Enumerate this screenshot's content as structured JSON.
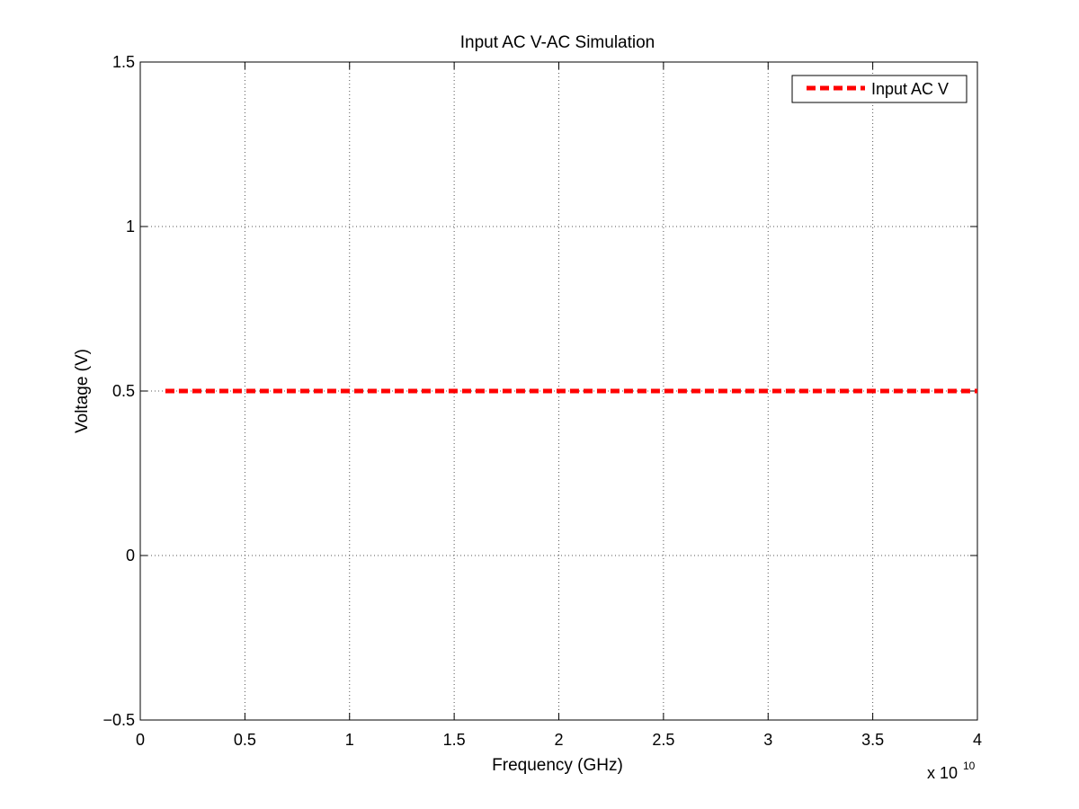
{
  "chart_data": {
    "type": "line",
    "title": "Input AC V-AC Simulation",
    "xlabel": "Frequency (GHz)",
    "ylabel": "Voltage (V)",
    "x_exponent_base": "x 10",
    "x_exponent_power": "10",
    "xlim": [
      0,
      40000000000.0
    ],
    "ylim": [
      -0.5,
      1.5
    ],
    "x_ticks": [
      0,
      5000000000.0,
      10000000000.0,
      15000000000.0,
      20000000000.0,
      25000000000.0,
      30000000000.0,
      35000000000.0,
      40000000000.0
    ],
    "x_tick_labels": [
      "0",
      "0.5",
      "1",
      "1.5",
      "2",
      "2.5",
      "3",
      "3.5",
      "4"
    ],
    "y_ticks": [
      -0.5,
      0,
      0.5,
      1,
      1.5
    ],
    "y_tick_labels": [
      "−0.5",
      "0",
      "0.5",
      "1",
      "1.5"
    ],
    "grid": true,
    "legend_position": "top-right",
    "series": [
      {
        "name": "Input AC V",
        "color": "#ff0000",
        "line_style": "dashed",
        "x": [
          1200000000.0,
          40000000000.0
        ],
        "y": [
          0.5,
          0.5
        ]
      }
    ]
  }
}
